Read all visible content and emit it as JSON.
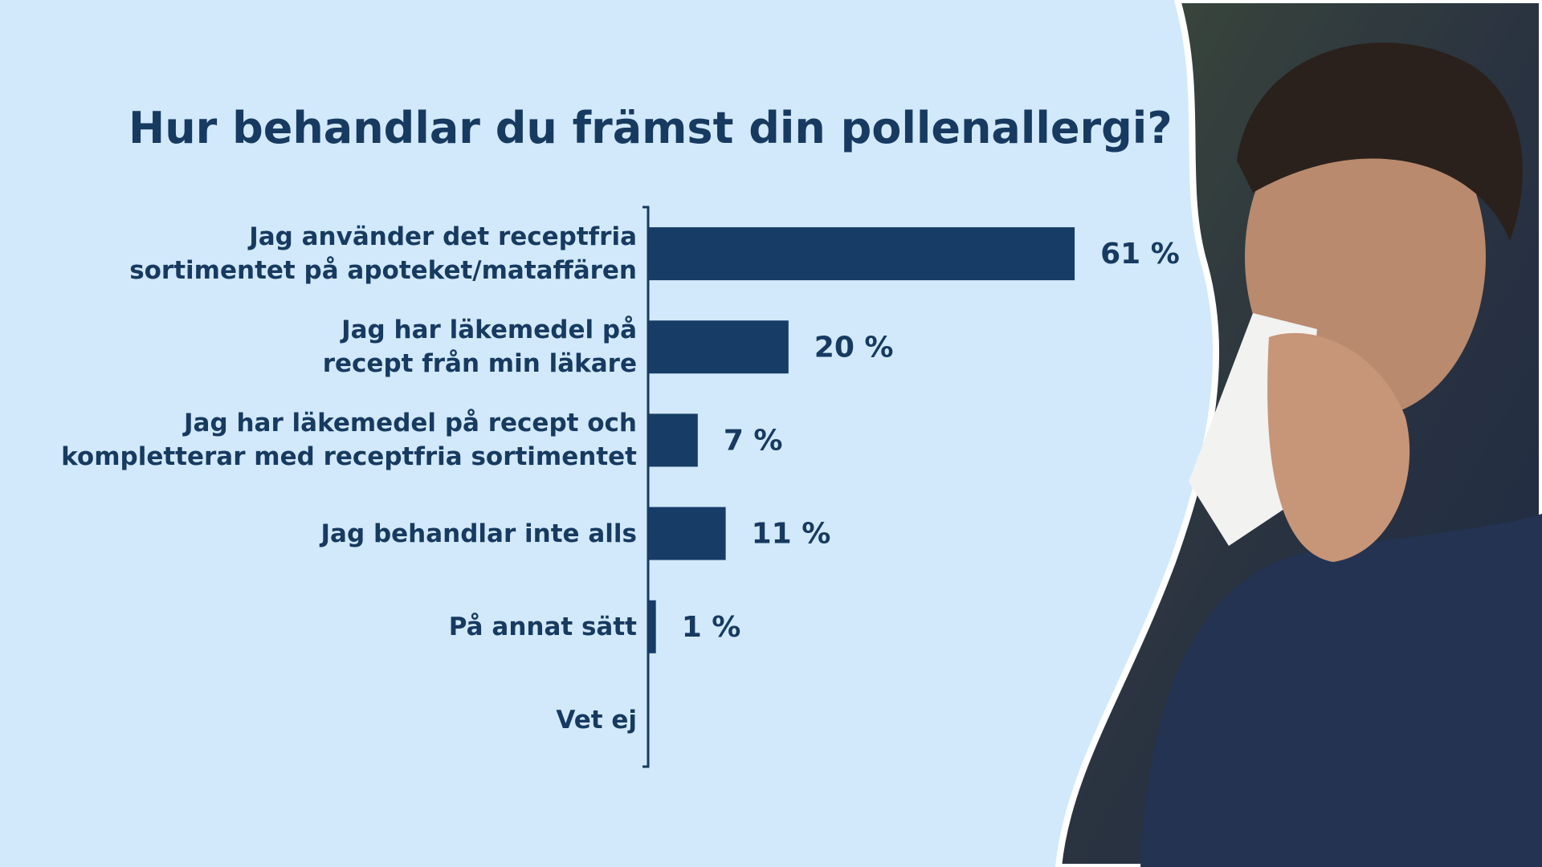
{
  "chart_data": {
    "type": "bar",
    "orientation": "horizontal",
    "title": "Hur behandlar du främst din pollenallergi?",
    "categories": [
      "Jag använder det receptfria\nsortimentet på apoteket/mataffären",
      "Jag har läkemedel på\nrecept från min läkare",
      "Jag har läkemedel på recept och\nkompletterar med receptfria sortimentet",
      "Jag behandlar inte alls",
      "På annat sätt",
      "Vet ej"
    ],
    "values": [
      61,
      20,
      7,
      11,
      1,
      null
    ],
    "value_labels": [
      "61 %",
      "20 %",
      "7 %",
      "11 %",
      "1 %",
      null
    ],
    "color": "#173d66",
    "xlim": [
      0,
      100
    ]
  }
}
